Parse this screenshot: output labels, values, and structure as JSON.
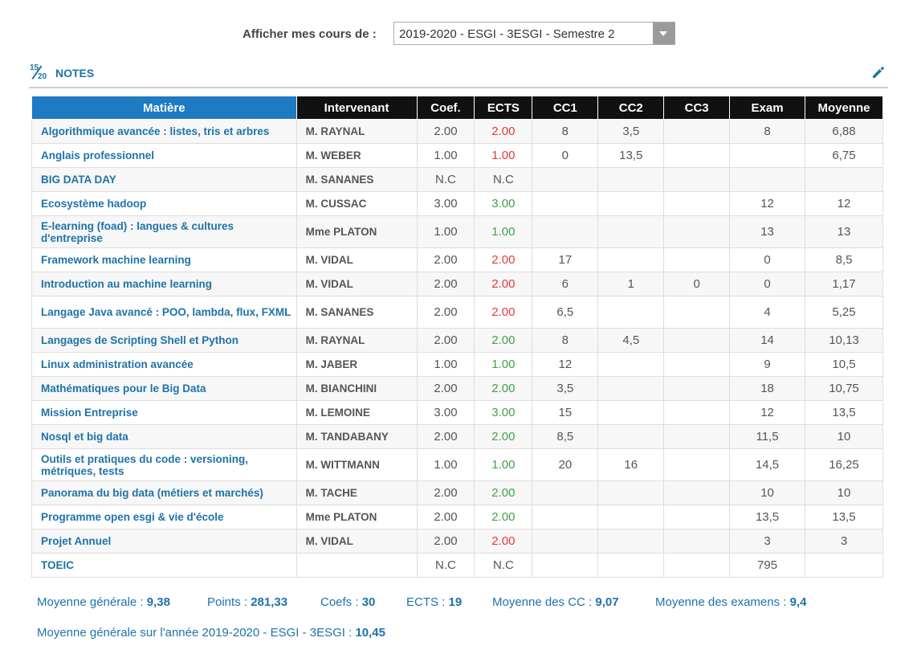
{
  "selector": {
    "label": "Afficher mes cours de :",
    "value": "2019-2020 - ESGI - 3ESGI - Semestre 2"
  },
  "notes_header": {
    "icon_top": "15",
    "icon_bottom": "20",
    "title": "NOTES"
  },
  "columns": [
    "Matière",
    "Intervenant",
    "Coef.",
    "ECTS",
    "CC1",
    "CC2",
    "CC3",
    "Exam",
    "Moyenne"
  ],
  "colors": {
    "accent": "#1e7bc2",
    "header_bg": "#111111",
    "ects_red": "#e53935",
    "ects_green": "#43a047"
  },
  "rows": [
    {
      "subject": "Algorithmique avancée : listes, tris et arbres",
      "teacher": "M. RAYNAL",
      "coef": "2.00",
      "ects": "2.00",
      "ects_status": "red",
      "cc1": "8",
      "cc2": "3,5",
      "cc3": "",
      "exam": "8",
      "avg": "6,88"
    },
    {
      "subject": "Anglais professionnel",
      "teacher": "M. WEBER",
      "coef": "1.00",
      "ects": "1.00",
      "ects_status": "red",
      "cc1": "0",
      "cc2": "13,5",
      "cc3": "",
      "exam": "",
      "avg": "6,75"
    },
    {
      "subject": "BIG DATA DAY",
      "teacher": "M. SANANES",
      "coef": "N.C",
      "ects": "N.C",
      "ects_status": "none",
      "cc1": "",
      "cc2": "",
      "cc3": "",
      "exam": "",
      "avg": ""
    },
    {
      "subject": "Ecosystème hadoop",
      "teacher": "M. CUSSAC",
      "coef": "3.00",
      "ects": "3.00",
      "ects_status": "green",
      "cc1": "",
      "cc2": "",
      "cc3": "",
      "exam": "12",
      "avg": "12"
    },
    {
      "subject": "E-learning (foad) : langues & cultures d'entreprise",
      "teacher": "Mme PLATON",
      "coef": "1.00",
      "ects": "1.00",
      "ects_status": "green",
      "cc1": "",
      "cc2": "",
      "cc3": "",
      "exam": "13",
      "avg": "13",
      "tall": true
    },
    {
      "subject": "Framework machine learning",
      "teacher": "M. VIDAL",
      "coef": "2.00",
      "ects": "2.00",
      "ects_status": "red",
      "cc1": "17",
      "cc2": "",
      "cc3": "",
      "exam": "0",
      "avg": "8,5"
    },
    {
      "subject": "Introduction au machine learning",
      "teacher": "M. VIDAL",
      "coef": "2.00",
      "ects": "2.00",
      "ects_status": "red",
      "cc1": "6",
      "cc2": "1",
      "cc3": "0",
      "exam": "0",
      "avg": "1,17"
    },
    {
      "subject": "Langage Java avancé : POO, lambda, flux, FXML",
      "teacher": "M. SANANES",
      "coef": "2.00",
      "ects": "2.00",
      "ects_status": "red",
      "cc1": "6,5",
      "cc2": "",
      "cc3": "",
      "exam": "4",
      "avg": "5,25",
      "tall": true
    },
    {
      "subject": "Langages de Scripting Shell et Python",
      "teacher": "M. RAYNAL",
      "coef": "2.00",
      "ects": "2.00",
      "ects_status": "green",
      "cc1": "8",
      "cc2": "4,5",
      "cc3": "",
      "exam": "14",
      "avg": "10,13"
    },
    {
      "subject": "Linux administration avancée",
      "teacher": "M. JABER",
      "coef": "1.00",
      "ects": "1.00",
      "ects_status": "green",
      "cc1": "12",
      "cc2": "",
      "cc3": "",
      "exam": "9",
      "avg": "10,5"
    },
    {
      "subject": "Mathématiques pour le Big Data",
      "teacher": "M. BIANCHINI",
      "coef": "2.00",
      "ects": "2.00",
      "ects_status": "green",
      "cc1": "3,5",
      "cc2": "",
      "cc3": "",
      "exam": "18",
      "avg": "10,75"
    },
    {
      "subject": "Mission Entreprise",
      "teacher": "M. LEMOINE",
      "coef": "3.00",
      "ects": "3.00",
      "ects_status": "green",
      "cc1": "15",
      "cc2": "",
      "cc3": "",
      "exam": "12",
      "avg": "13,5"
    },
    {
      "subject": "Nosql et big data",
      "teacher": "M. TANDABANY",
      "coef": "2.00",
      "ects": "2.00",
      "ects_status": "green",
      "cc1": "8,5",
      "cc2": "",
      "cc3": "",
      "exam": "11,5",
      "avg": "10"
    },
    {
      "subject": "Outils et pratiques du code : versioning, métriques, tests",
      "teacher": "M. WITTMANN",
      "coef": "1.00",
      "ects": "1.00",
      "ects_status": "green",
      "cc1": "20",
      "cc2": "16",
      "cc3": "",
      "exam": "14,5",
      "avg": "16,25",
      "tall": true
    },
    {
      "subject": "Panorama du big data (métiers et marchés)",
      "teacher": "M. TACHE",
      "coef": "2.00",
      "ects": "2.00",
      "ects_status": "green",
      "cc1": "",
      "cc2": "",
      "cc3": "",
      "exam": "10",
      "avg": "10"
    },
    {
      "subject": "Programme open esgi & vie d'école",
      "teacher": "Mme PLATON",
      "coef": "2.00",
      "ects": "2.00",
      "ects_status": "green",
      "cc1": "",
      "cc2": "",
      "cc3": "",
      "exam": "13,5",
      "avg": "13,5"
    },
    {
      "subject": "Projet Annuel",
      "teacher": "M. VIDAL",
      "coef": "2.00",
      "ects": "2.00",
      "ects_status": "red",
      "cc1": "",
      "cc2": "",
      "cc3": "",
      "exam": "3",
      "avg": "3"
    },
    {
      "subject": "TOEIC",
      "teacher": "",
      "coef": "N.C",
      "ects": "N.C",
      "ects_status": "none",
      "cc1": "",
      "cc2": "",
      "cc3": "",
      "exam": "795",
      "avg": ""
    }
  ],
  "stats": {
    "general_avg_label": "Moyenne générale :",
    "general_avg": "9,38",
    "points_label": "Points :",
    "points": "281,33",
    "coefs_label": "Coefs :",
    "coefs": "30",
    "ects_label": "ECTS :",
    "ects": "19",
    "cc_avg_label": "Moyenne des CC :",
    "cc_avg": "9,07",
    "exam_avg_label": "Moyenne des examens :",
    "exam_avg": "9,4"
  },
  "year_avg": {
    "label": "Moyenne générale sur l'année 2019-2020 - ESGI - 3ESGI :",
    "value": "10,45"
  }
}
